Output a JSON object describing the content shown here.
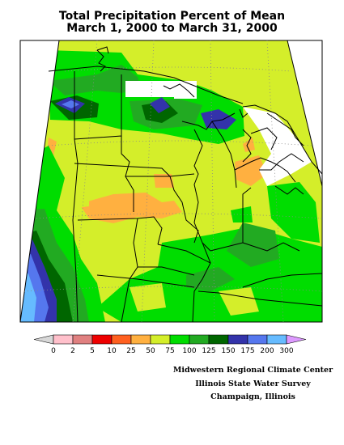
{
  "title": {
    "line1": "Total Precipitation Percent of Mean",
    "line2": "March 1, 2000 to March 31, 2000"
  },
  "legend": {
    "labels": [
      "0",
      "2",
      "5",
      "10",
      "25",
      "50",
      "75",
      "100",
      "125",
      "150",
      "175",
      "200",
      "300"
    ],
    "colors": [
      "#d8d8d8",
      "#ffc0cb",
      "#e08080",
      "#ee0000",
      "#ff6020",
      "#ffb040",
      "#d4ee2a",
      "#00dd00",
      "#22aa22",
      "#006600",
      "#3333aa",
      "#5577ee",
      "#66bbff",
      "#dd99ff"
    ]
  },
  "credits": {
    "line1": "Midwestern Regional Climate Center",
    "line2": "Illinois State Water Survey",
    "line3": "Champaign, Illinois"
  }
}
